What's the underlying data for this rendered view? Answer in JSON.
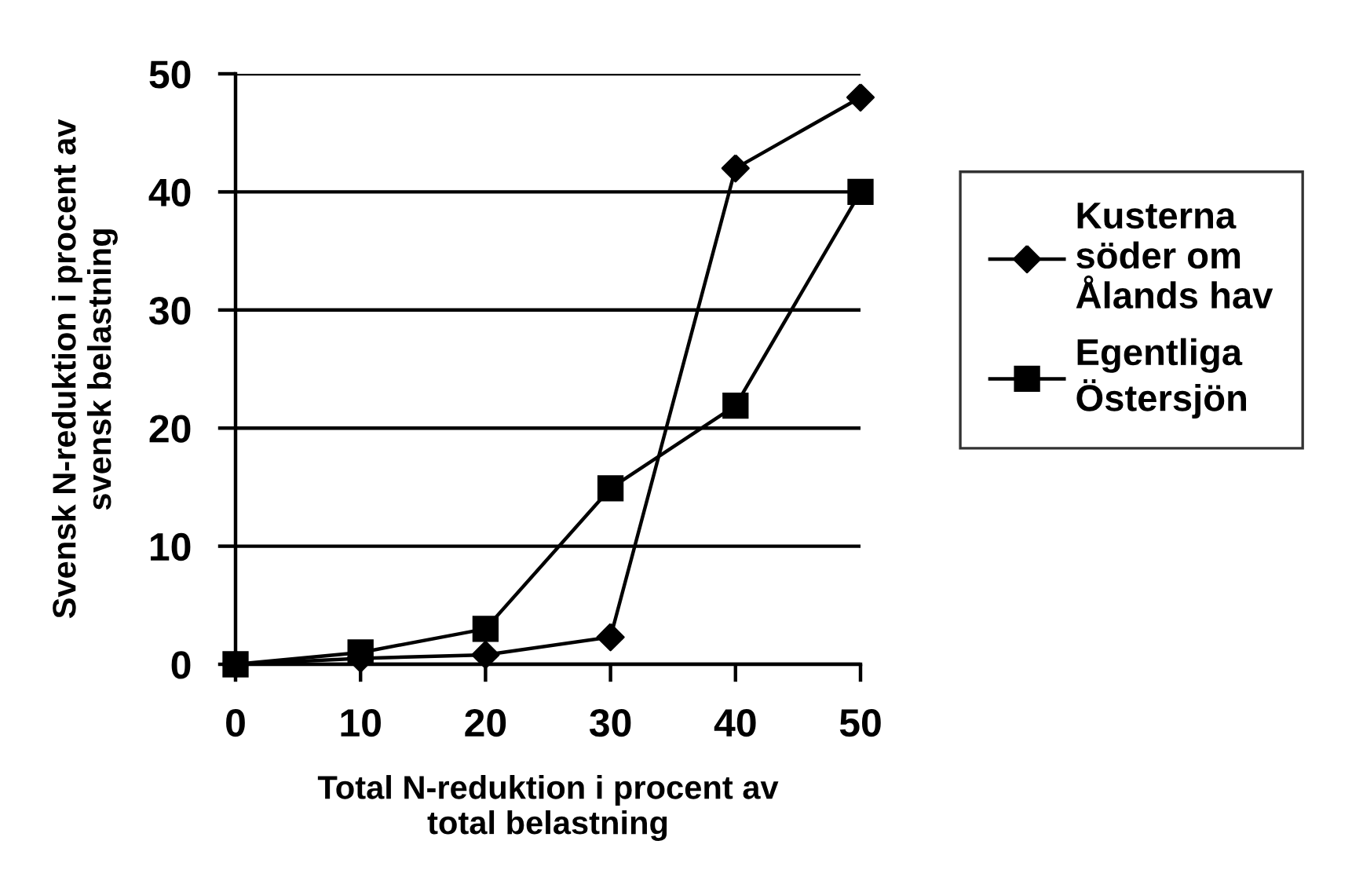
{
  "chart_data": {
    "type": "line",
    "xlabel": "Total N-reduktion i procent av\ntotal belastning",
    "ylabel": "Svensk N-reduktion i procent av\nsvensk belastning",
    "x": [
      0,
      10,
      20,
      30,
      40,
      50
    ],
    "series": [
      {
        "name": "Kusterna\nsöder om\nÅlands hav",
        "color": "#000000",
        "marker": "diamond",
        "values": [
          0,
          0.5,
          0.8,
          2.3,
          42,
          48
        ]
      },
      {
        "name": "Egentliga\nÖstersjön",
        "color": "#000000",
        "marker": "square",
        "values": [
          0,
          1,
          3,
          14.9,
          21.9,
          40
        ]
      }
    ],
    "xlim": [
      0,
      50
    ],
    "xticks": [
      0,
      10,
      20,
      30,
      40,
      50
    ],
    "ylim": [
      0,
      50
    ],
    "yticks": [
      0,
      10,
      20,
      30,
      40,
      50
    ],
    "grid": "y",
    "legend": "right",
    "line_style": "solid"
  }
}
